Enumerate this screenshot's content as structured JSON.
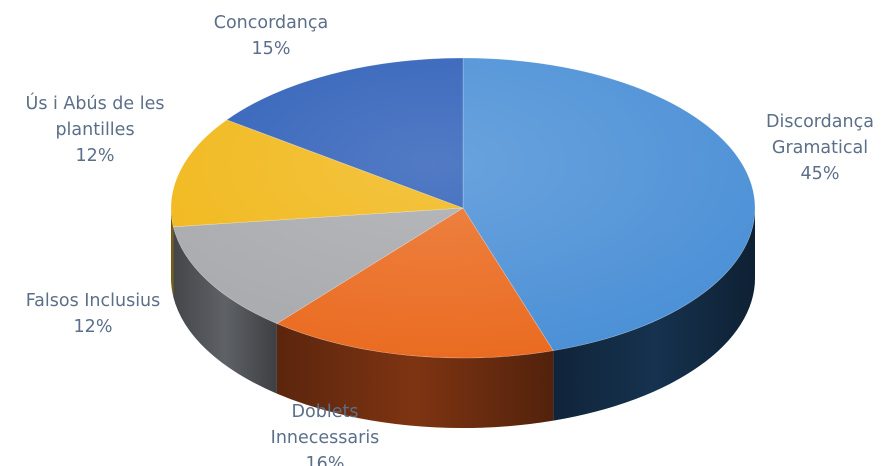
{
  "chart_data": {
    "type": "pie",
    "title": "",
    "slices": [
      {
        "label": [
          "Discordança",
          "Gramatical"
        ],
        "value": 45,
        "value_label": "45%",
        "color": "#4a8fd6",
        "side_color": "#16324f"
      },
      {
        "label": [
          "Doblets",
          "Innecessaris"
        ],
        "value": 16,
        "value_label": "16%",
        "color": "#ea6a1f",
        "side_color": "#7e3412"
      },
      {
        "label": [
          "Falsos Inclusius"
        ],
        "value": 12,
        "value_label": "12%",
        "color": "#a7a9ad",
        "side_color": "#5e6166"
      },
      {
        "label": [
          "Ús i Abús de les",
          "plantilles"
        ],
        "value": 12,
        "value_label": "12%",
        "color": "#f1b717",
        "side_color": "#8a6a0c"
      },
      {
        "label": [
          "Concordança"
        ],
        "value": 15,
        "value_label": "15%",
        "color": "#2d5eb8",
        "side_color": "#1a3a73"
      }
    ],
    "legend": "none",
    "style": "3d-pie"
  }
}
